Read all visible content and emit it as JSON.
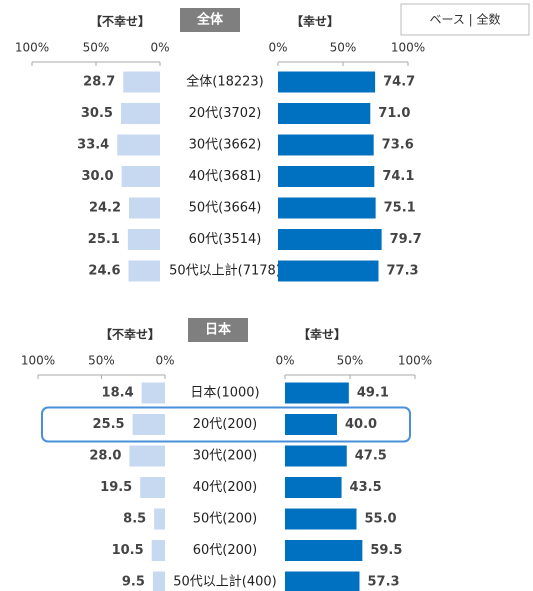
{
  "badge": "ベース | 全数",
  "chart_data": [
    {
      "type": "butterfly",
      "title": "全体",
      "categories": [
        "全体(18223)",
        "20代(3702)",
        "30代(3662)",
        "40代(3681)",
        "50代(3664)",
        "60代(3514)",
        "50代以上計(7178)"
      ],
      "series": [
        {
          "name": "【不幸せ】",
          "color": "#c6d9f1",
          "values": [
            28.7,
            30.5,
            33.4,
            30.0,
            24.2,
            25.1,
            24.6
          ],
          "value_labels": [
            "28.7",
            "30.5",
            "33.4",
            "30.0",
            "24.2",
            "25.1",
            "24.6"
          ]
        },
        {
          "name": "【幸せ】",
          "color": "#0070c0",
          "axis": "x2",
          "values": [
            74.7,
            71.0,
            73.6,
            74.1,
            75.1,
            79.7,
            77.3
          ],
          "value_labels": [
            "74.7",
            "71.0",
            "73.6",
            "74.1",
            "75.1",
            "79.7",
            "77.3"
          ]
        }
      ],
      "xlim": [
        100,
        0
      ],
      "xticks": [
        {
          "value": 100,
          "label": "100%"
        },
        {
          "value": 50,
          "label": "50%"
        },
        {
          "value": 0,
          "label": "0%"
        }
      ],
      "x2lim": [
        0,
        100
      ],
      "x2ticks": [
        {
          "value": 0,
          "label": "0%"
        },
        {
          "value": 50,
          "label": "50%"
        },
        {
          "value": 100,
          "label": "100%"
        }
      ]
    },
    {
      "type": "butterfly",
      "title": "日本",
      "categories": [
        "日本(1000)",
        "20代(200)",
        "30代(200)",
        "40代(200)",
        "50代(200)",
        "60代(200)",
        "50代以上計(400)"
      ],
      "series": [
        {
          "name": "【不幸せ】",
          "color": "#c6d9f1",
          "values": [
            18.4,
            25.5,
            28.0,
            19.5,
            8.5,
            10.5,
            9.5
          ],
          "value_labels": [
            "18.4",
            "25.5",
            "28.0",
            "19.5",
            "8.5",
            "10.5",
            "9.5"
          ]
        },
        {
          "name": "【幸せ】",
          "color": "#0070c0",
          "axis": "x2",
          "values": [
            49.1,
            40.0,
            47.5,
            43.5,
            55.0,
            59.5,
            57.3
          ],
          "value_labels": [
            "49.1",
            "40.0",
            "47.5",
            "43.5",
            "55.0",
            "59.5",
            "57.3"
          ]
        }
      ],
      "xlim": [
        100,
        0
      ],
      "xticks": [
        {
          "value": 100,
          "label": "100%"
        },
        {
          "value": 50,
          "label": "50%"
        },
        {
          "value": 0,
          "label": "0%"
        }
      ],
      "x2lim": [
        0,
        100
      ],
      "x2ticks": [
        {
          "value": 0,
          "label": "0%"
        },
        {
          "value": 50,
          "label": "50%"
        },
        {
          "value": 100,
          "label": "100%"
        }
      ],
      "highlight": 1
    }
  ]
}
